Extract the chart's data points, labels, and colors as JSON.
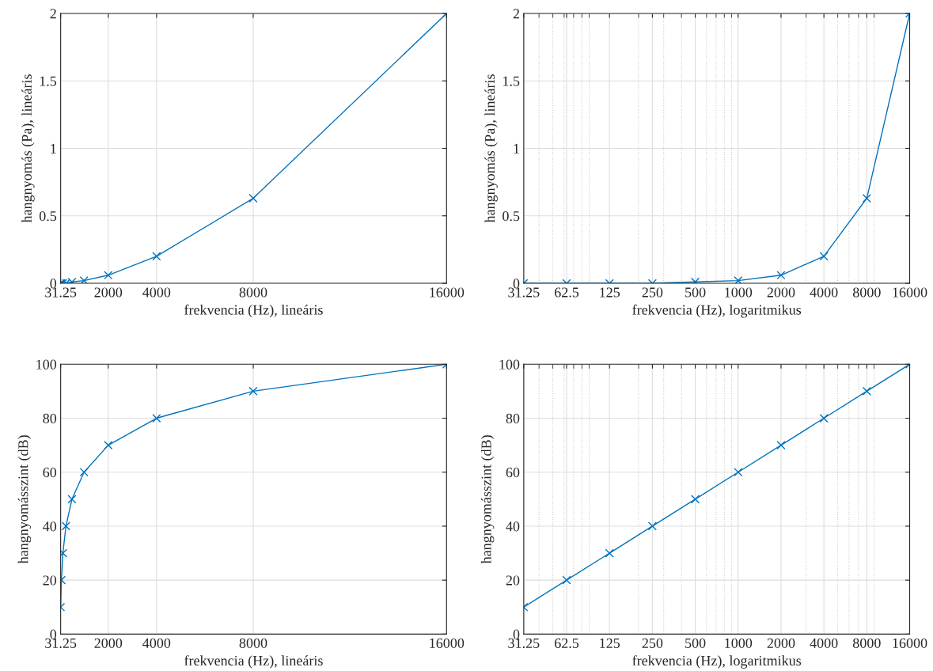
{
  "chart_data": [
    {
      "type": "line",
      "xlabel": "frekvencia (Hz), lineáris",
      "ylabel": "hangnyomás (Pa), lineáris",
      "x": [
        31.25,
        62.5,
        125,
        250,
        500,
        1000,
        2000,
        4000,
        8000,
        16000
      ],
      "series": [
        {
          "color": "#0072bd",
          "values": [
            0,
            0,
            0,
            0,
            0.01,
            0.02,
            0.06,
            0.2,
            0.63,
            2
          ]
        }
      ],
      "xlim": [
        31.25,
        16000
      ],
      "xticks": [
        31.25,
        2000,
        4000,
        8000,
        16000
      ],
      "ylim": [
        0,
        2
      ],
      "yticks": [
        0,
        0.5,
        1,
        1.5,
        2
      ],
      "grid": true,
      "marker": "cross",
      "line_style": "solid"
    },
    {
      "type": "line",
      "xlabel": "frekvencia (Hz), logaritmikus",
      "ylabel": "hangnyomás (Pa), lineáris",
      "x": [
        31.25,
        62.5,
        125,
        250,
        500,
        1000,
        2000,
        4000,
        8000,
        16000
      ],
      "series": [
        {
          "color": "#0072bd",
          "values": [
            0,
            0,
            0,
            0,
            0.01,
            0.02,
            0.06,
            0.2,
            0.63,
            2
          ]
        }
      ],
      "log": "x",
      "xlim": [
        31.25,
        16000
      ],
      "xticks": [
        31.25,
        62.5,
        125,
        250,
        500,
        1000,
        2000,
        4000,
        8000,
        16000
      ],
      "ylim": [
        0,
        2
      ],
      "yticks": [
        0,
        0.5,
        1,
        1.5,
        2
      ],
      "grid": true,
      "marker": "cross",
      "line_style": "solid"
    },
    {
      "type": "line",
      "xlabel": "frekvencia (Hz), lineáris",
      "ylabel": "hangnyomásszint (dB)",
      "x": [
        31.25,
        62.5,
        125,
        250,
        500,
        1000,
        2000,
        4000,
        8000,
        16000
      ],
      "series": [
        {
          "color": "#0072bd",
          "values": [
            10,
            20,
            30,
            40,
            50,
            60,
            70,
            80,
            90,
            100
          ]
        }
      ],
      "xlim": [
        31.25,
        16000
      ],
      "xticks": [
        31.25,
        2000,
        4000,
        8000,
        16000
      ],
      "ylim": [
        0,
        100
      ],
      "yticks": [
        0,
        20,
        40,
        60,
        80,
        100
      ],
      "grid": true,
      "marker": "cross",
      "line_style": "solid"
    },
    {
      "type": "line",
      "xlabel": "frekvencia (Hz), logaritmikus",
      "ylabel": "hangnyomásszint (dB)",
      "x": [
        31.25,
        62.5,
        125,
        250,
        500,
        1000,
        2000,
        4000,
        8000,
        16000
      ],
      "series": [
        {
          "color": "#0072bd",
          "values": [
            10,
            20,
            30,
            40,
            50,
            60,
            70,
            80,
            90,
            100
          ]
        }
      ],
      "log": "x",
      "xlim": [
        31.25,
        16000
      ],
      "xticks": [
        31.25,
        62.5,
        125,
        250,
        500,
        1000,
        2000,
        4000,
        8000,
        16000
      ],
      "ylim": [
        0,
        100
      ],
      "yticks": [
        0,
        20,
        40,
        60,
        80,
        100
      ],
      "grid": true,
      "marker": "cross",
      "line_style": "solid"
    }
  ]
}
